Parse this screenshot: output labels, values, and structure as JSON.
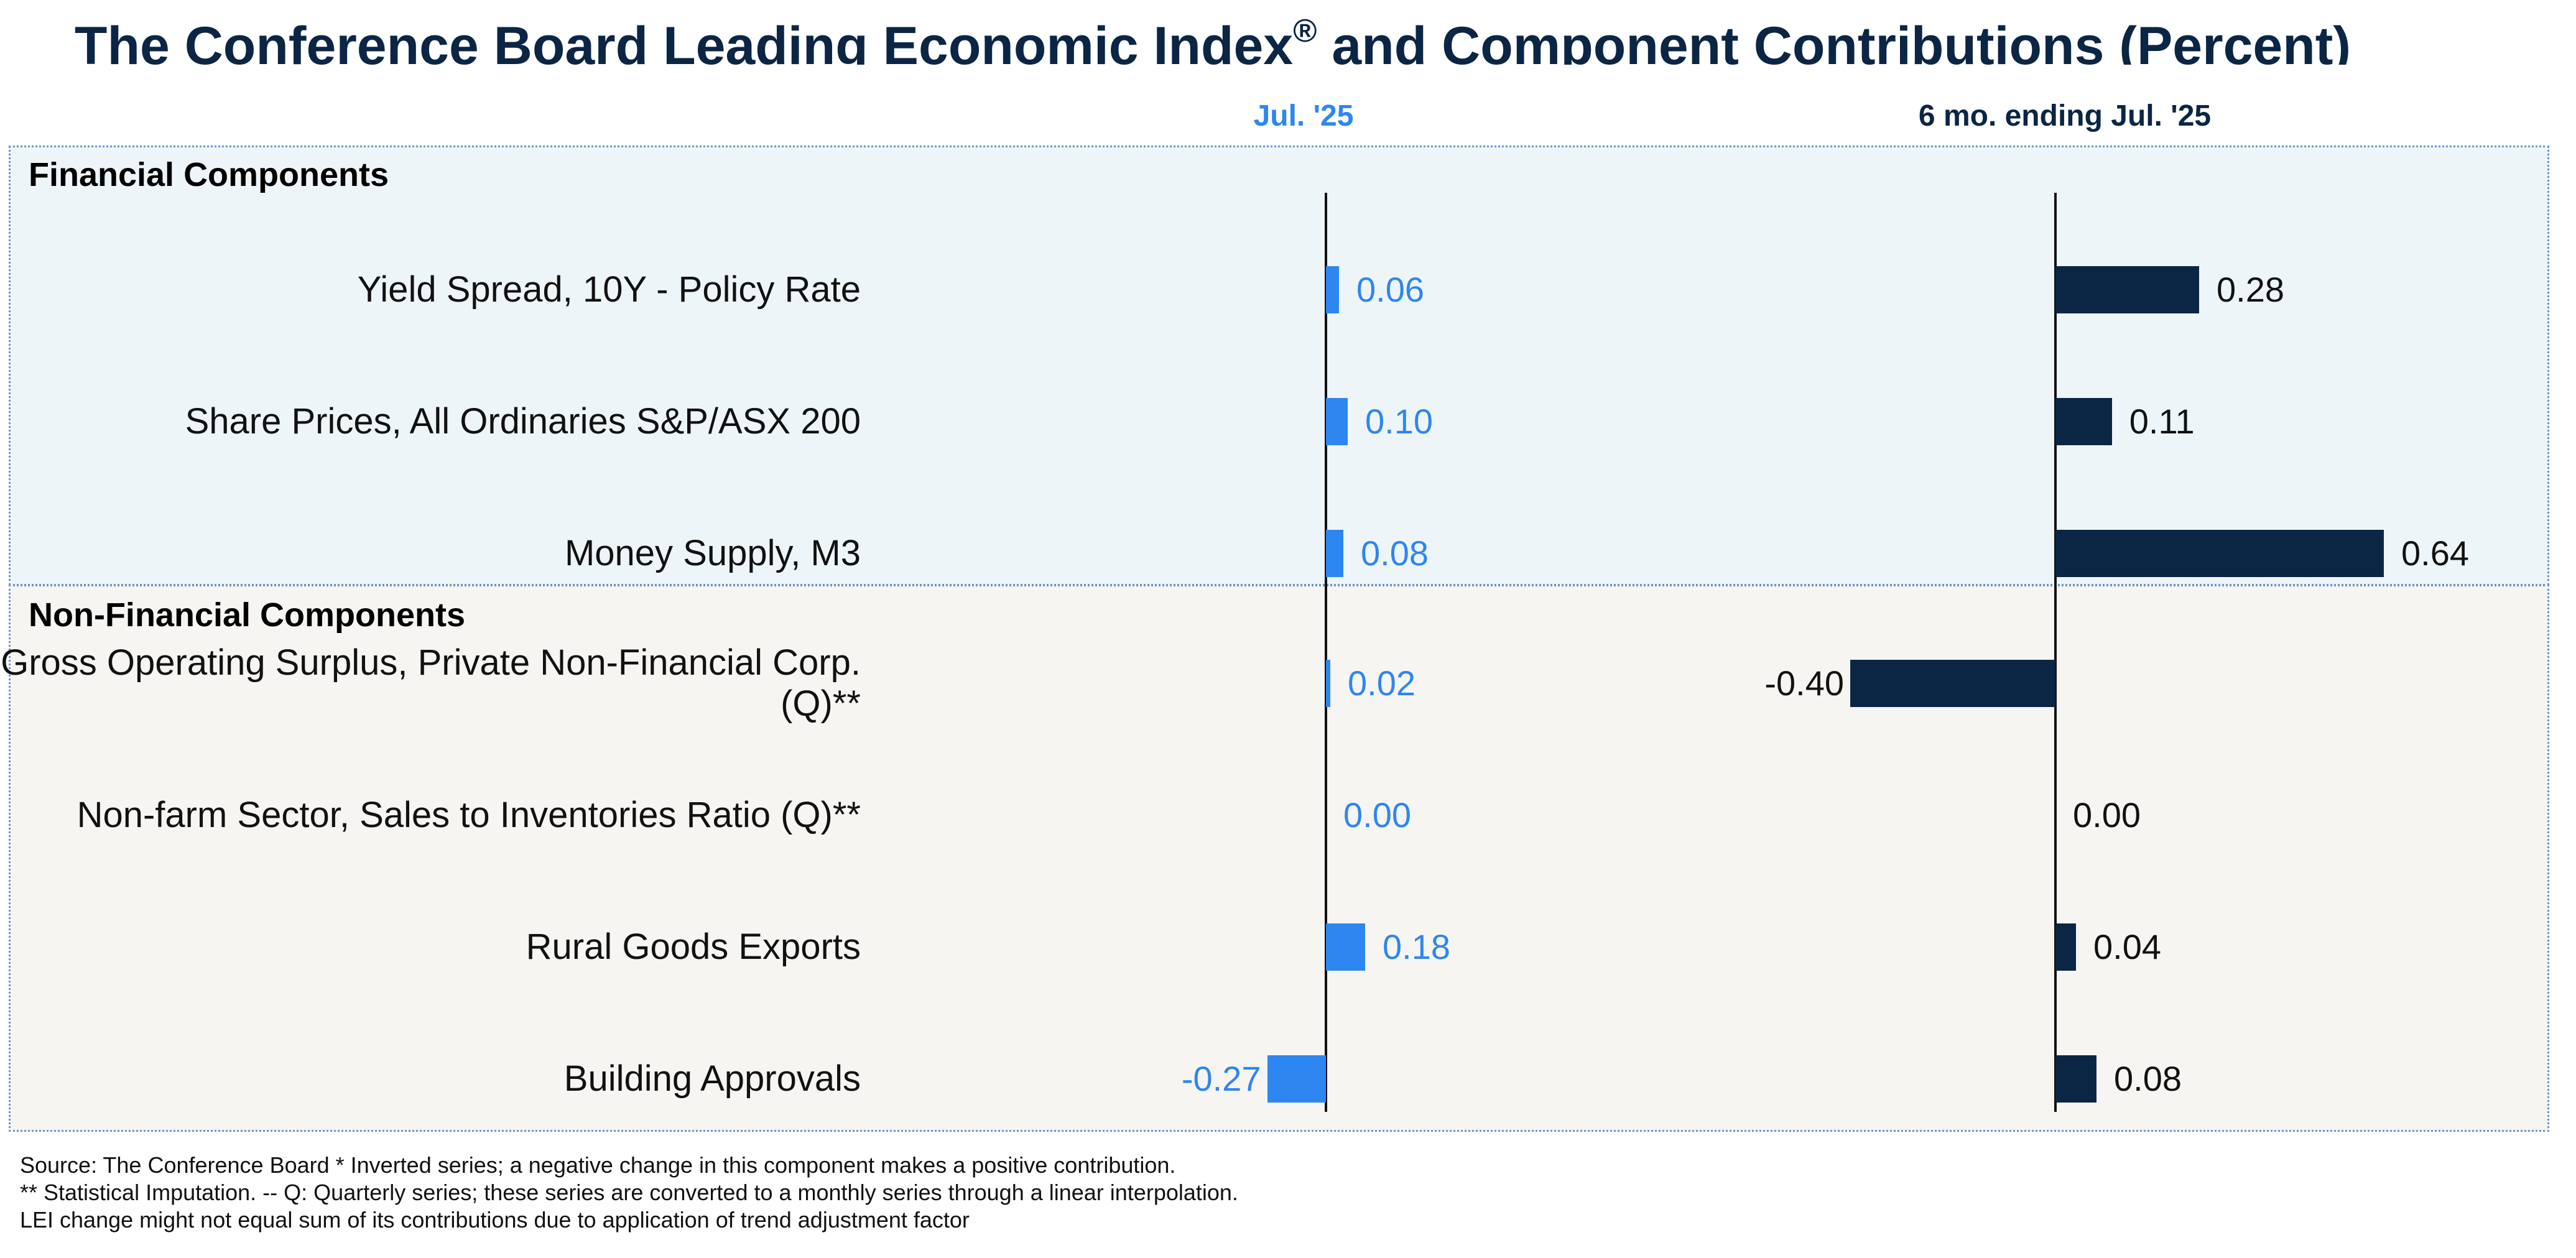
{
  "title": {
    "main": "The Conference Board Leading Economic Index",
    "registered": "®",
    "rest": " and Component Contributions (Percent)"
  },
  "colors": {
    "left_bar": "#2e86f0",
    "right_bar": "#0b2545",
    "title": "#0b2545"
  },
  "headers": {
    "left": "Jul. '25",
    "right": "6 mo. ending Jul. '25"
  },
  "sections": {
    "financial": "Financial Components",
    "non_financial": "Non-Financial Components"
  },
  "footnotes": [
    "Source: The Conference Board *  Inverted series; a negative change in this component makes a positive contribution.",
    "**  Statistical Imputation. -- Q: Quarterly series; these series are converted to a monthly series through a linear interpolation.",
    "LEI change might not equal sum of its contributions due to application of trend adjustment factor"
  ],
  "chart_data": [
    {
      "type": "bar",
      "orientation": "horizontal",
      "title": "Jul. '25",
      "categories": [
        "Yield Spread, 10Y - Policy Rate",
        "Share Prices, All Ordinaries S&P/ASX 200",
        "Money Supply, M3",
        "Gross Operating Surplus, Private Non-Financial Corp. (Q)**",
        "Non-farm Sector, Sales to Inventories Ratio (Q)**",
        "Rural Goods Exports",
        "Building Approvals"
      ],
      "values": [
        0.06,
        0.1,
        0.08,
        0.02,
        0.0,
        0.18,
        -0.27
      ],
      "labels": [
        "0.06",
        "0.10",
        "0.08",
        "0.02",
        "0.00",
        "0.18",
        "-0.27"
      ],
      "xlim": [
        -0.27,
        0.18
      ]
    },
    {
      "type": "bar",
      "orientation": "horizontal",
      "title": "6 mo. ending Jul. '25",
      "categories": [
        "Yield Spread, 10Y - Policy Rate",
        "Share Prices, All Ordinaries S&P/ASX 200",
        "Money Supply, M3",
        "Gross Operating Surplus, Private Non-Financial Corp. (Q)**",
        "Non-farm Sector, Sales to Inventories Ratio (Q)**",
        "Rural Goods Exports",
        "Building Approvals"
      ],
      "values": [
        0.28,
        0.11,
        0.64,
        -0.4,
        0.0,
        0.04,
        0.08
      ],
      "labels": [
        "0.28",
        "0.11",
        "0.64",
        "-0.40",
        "0.00",
        "0.04",
        "0.08"
      ],
      "xlim": [
        -0.4,
        0.64
      ]
    }
  ]
}
